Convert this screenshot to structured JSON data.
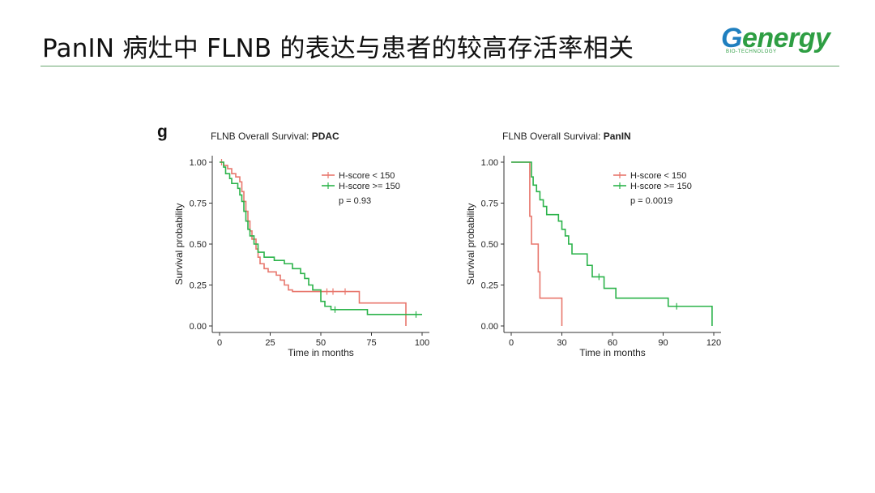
{
  "slide": {
    "title": "PanIN 病灶中 FLNB 的表达与患者的较高存活率相关",
    "logo_text_cap": "G",
    "logo_text_rest": "energy",
    "logo_subtext": "BIO-TECHNOLOGY",
    "accent_color": "#6aa76f",
    "panel_letter": "g"
  },
  "chart_data": [
    {
      "type": "line",
      "step": true,
      "title_prefix": "FLNB Overall Survival: ",
      "title_bold": "PDAC",
      "xlabel": "Time in months",
      "ylabel": "Survival probability",
      "xlim": [
        0,
        100
      ],
      "ylim": [
        0,
        1
      ],
      "xticks": [
        0,
        25,
        50,
        75,
        100
      ],
      "yticks": [
        0.0,
        0.25,
        0.5,
        0.75,
        1.0
      ],
      "ytick_labels": [
        "0.00",
        "0.25",
        "0.50",
        "0.75",
        "1.00"
      ],
      "grid": false,
      "legend_position": "top-right",
      "annotation": "p = 0.93",
      "series": [
        {
          "name": "H-score < 150",
          "color": "#e8776d",
          "points": [
            [
              0,
              1.0
            ],
            [
              2,
              0.98
            ],
            [
              4,
              0.96
            ],
            [
              6,
              0.93
            ],
            [
              8,
              0.91
            ],
            [
              10,
              0.88
            ],
            [
              11,
              0.82
            ],
            [
              12,
              0.76
            ],
            [
              13,
              0.7
            ],
            [
              14,
              0.64
            ],
            [
              15,
              0.58
            ],
            [
              16,
              0.53
            ],
            [
              18,
              0.47
            ],
            [
              19,
              0.42
            ],
            [
              20,
              0.38
            ],
            [
              22,
              0.35
            ],
            [
              24,
              0.33
            ],
            [
              28,
              0.31
            ],
            [
              30,
              0.28
            ],
            [
              32,
              0.25
            ],
            [
              34,
              0.22
            ],
            [
              36,
              0.21
            ],
            [
              68,
              0.21
            ],
            [
              69,
              0.14
            ],
            [
              92,
              0.14
            ],
            [
              92,
              0.0
            ]
          ],
          "censors": [
            [
              1,
              1.0
            ],
            [
              53,
              0.21
            ],
            [
              56,
              0.21
            ],
            [
              62,
              0.21
            ]
          ]
        },
        {
          "name": "H-score >= 150",
          "color": "#2bb34a",
          "points": [
            [
              0,
              1.0
            ],
            [
              2,
              0.97
            ],
            [
              3,
              0.93
            ],
            [
              5,
              0.9
            ],
            [
              6,
              0.87
            ],
            [
              9,
              0.84
            ],
            [
              10,
              0.8
            ],
            [
              11,
              0.76
            ],
            [
              12,
              0.7
            ],
            [
              13,
              0.64
            ],
            [
              14,
              0.59
            ],
            [
              15,
              0.55
            ],
            [
              17,
              0.5
            ],
            [
              19,
              0.45
            ],
            [
              22,
              0.42
            ],
            [
              27,
              0.4
            ],
            [
              32,
              0.38
            ],
            [
              36,
              0.35
            ],
            [
              40,
              0.32
            ],
            [
              42,
              0.29
            ],
            [
              44,
              0.25
            ],
            [
              46,
              0.22
            ],
            [
              50,
              0.15
            ],
            [
              52,
              0.12
            ],
            [
              55,
              0.1
            ],
            [
              72,
              0.1
            ],
            [
              73,
              0.07
            ],
            [
              100,
              0.07
            ]
          ],
          "censors": [
            [
              57,
              0.1
            ],
            [
              97,
              0.07
            ]
          ]
        }
      ]
    },
    {
      "type": "line",
      "step": true,
      "title_prefix": "FLNB Overall Survival: ",
      "title_bold": "PanIN",
      "xlabel": "Time in months",
      "ylabel": "Survival probability",
      "xlim": [
        0,
        120
      ],
      "ylim": [
        0,
        1
      ],
      "xticks": [
        0,
        30,
        60,
        90,
        120
      ],
      "yticks": [
        0.0,
        0.25,
        0.5,
        0.75,
        1.0
      ],
      "ytick_labels": [
        "0.00",
        "0.25",
        "0.50",
        "0.75",
        "1.00"
      ],
      "grid": false,
      "legend_position": "top-right",
      "annotation": "p = 0.0019",
      "series": [
        {
          "name": "H-score < 150",
          "color": "#e8776d",
          "points": [
            [
              0,
              1.0
            ],
            [
              11,
              1.0
            ],
            [
              11,
              0.67
            ],
            [
              12,
              0.5
            ],
            [
              15,
              0.5
            ],
            [
              16,
              0.33
            ],
            [
              17,
              0.17
            ],
            [
              30,
              0.17
            ],
            [
              30,
              0.0
            ]
          ],
          "censors": []
        },
        {
          "name": "H-score >= 150",
          "color": "#2bb34a",
          "points": [
            [
              0,
              1.0
            ],
            [
              11,
              1.0
            ],
            [
              12,
              0.91
            ],
            [
              13,
              0.86
            ],
            [
              15,
              0.82
            ],
            [
              17,
              0.77
            ],
            [
              19,
              0.73
            ],
            [
              21,
              0.68
            ],
            [
              28,
              0.64
            ],
            [
              30,
              0.59
            ],
            [
              32,
              0.55
            ],
            [
              34,
              0.5
            ],
            [
              36,
              0.44
            ],
            [
              45,
              0.37
            ],
            [
              48,
              0.3
            ],
            [
              55,
              0.23
            ],
            [
              62,
              0.17
            ],
            [
              93,
              0.12
            ],
            [
              119,
              0.12
            ],
            [
              119,
              0.0
            ]
          ],
          "censors": [
            [
              52,
              0.3
            ],
            [
              98,
              0.12
            ]
          ]
        }
      ]
    }
  ]
}
